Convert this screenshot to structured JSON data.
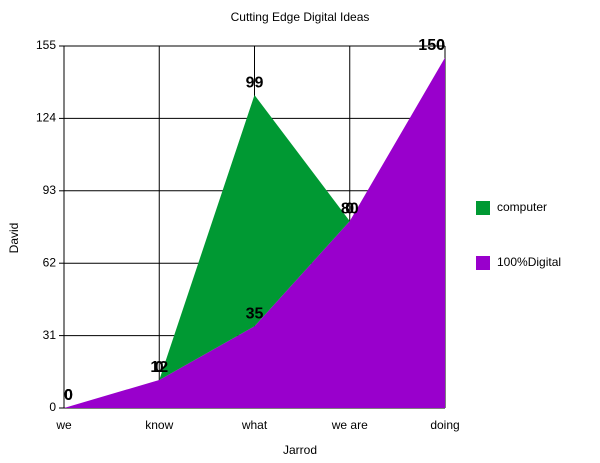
{
  "chart_data": {
    "type": "area",
    "stacked": true,
    "title": "Cutting Edge Digital Ideas",
    "x_label": "Jarrod",
    "y_label": "David",
    "categories": [
      "we",
      "know",
      "what",
      "we are",
      "doing"
    ],
    "series": [
      {
        "name": "computer",
        "color": "#009933",
        "values": [
          0,
          0,
          99,
          0,
          0
        ]
      },
      {
        "name": "100%Digital",
        "color": "#9900cc",
        "values": [
          0,
          12,
          35,
          80,
          150
        ]
      }
    ],
    "ylim": [
      0,
      155
    ],
    "yticks": [
      0,
      31,
      62,
      93,
      124,
      155
    ],
    "grid": true,
    "legend": "right"
  }
}
